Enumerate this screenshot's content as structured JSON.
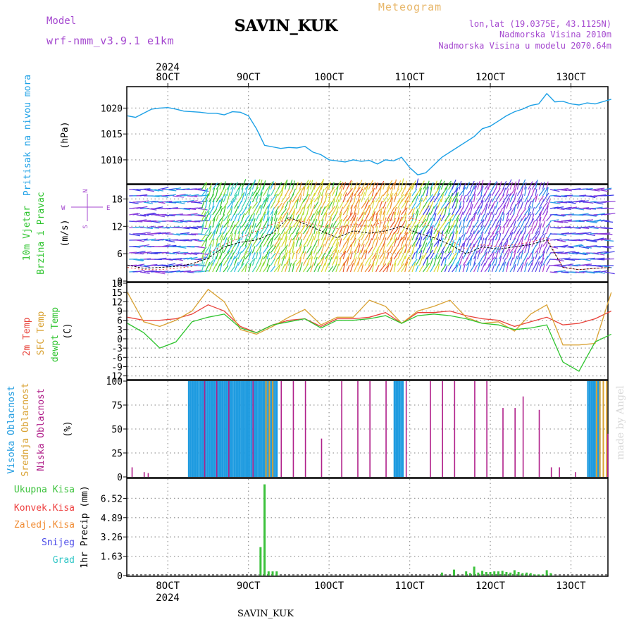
{
  "header": {
    "app_title": "Meteogram",
    "station": "SAVIN_KUK",
    "model_label": "Model",
    "model_name": "wrf-nmm_v3.9.1 e1km",
    "coords": "lon,lat (19.0375E, 43.1125N)",
    "elevation": "Nadmorska Visina 2010m",
    "model_elevation": "Nadmorska Visina u modelu 2070.64m",
    "watermark": "made by Angel",
    "footer_station": "SAVIN_KUK"
  },
  "colors": {
    "pressure": "#1ca0e6",
    "temp2m": "#e8423a",
    "sfc_temp": "#d9a233",
    "dewpt": "#2ec42e",
    "cloud_high": "#1e9be0",
    "cloud_mid": "#d9a233",
    "cloud_low": "#b0208a",
    "precip_total": "#3cc23c",
    "precip_conv": "#ee4040",
    "precip_frz": "#f08a30",
    "snow": "#4a4ae8",
    "grad": "#30c6c6",
    "title_purple": "#a447cf",
    "title_orange": "#e8b76a"
  },
  "chart_data": [
    {
      "id": "pressure",
      "type": "line",
      "year_label": "2024",
      "x_ticks": [
        "8OCT",
        "9OCT",
        "10OCT",
        "11OCT",
        "12OCT",
        "13OCT"
      ],
      "ylabel_name": "Pritisak na nivou mora",
      "ylabel_unit": "(hPa)",
      "ylim": [
        1005.5,
        1024
      ],
      "y_ticks": [
        "1010",
        "1015",
        "1020"
      ],
      "x": [
        7.5,
        7.6,
        7.7,
        7.8,
        7.9,
        8.0,
        8.1,
        8.2,
        8.3,
        8.4,
        8.5,
        8.6,
        8.7,
        8.8,
        8.9,
        9.0,
        9.1,
        9.2,
        9.3,
        9.4,
        9.5,
        9.6,
        9.7,
        9.8,
        9.9,
        10.0,
        10.1,
        10.2,
        10.3,
        10.4,
        10.5,
        10.6,
        10.7,
        10.8,
        10.9,
        11.0,
        11.1,
        11.2,
        11.3,
        11.4,
        11.5,
        11.6,
        11.7,
        11.8,
        11.9,
        12.0,
        12.1,
        12.2,
        12.3,
        12.4,
        12.5,
        12.6,
        12.7,
        12.8,
        12.9,
        13.0,
        13.1,
        13.2,
        13.3,
        13.5
      ],
      "y": [
        1018.5,
        1018.2,
        1019.0,
        1019.8,
        1020.0,
        1020.1,
        1019.8,
        1019.4,
        1019.3,
        1019.2,
        1019.0,
        1019.0,
        1018.7,
        1019.3,
        1019.2,
        1018.5,
        1016.0,
        1012.8,
        1012.5,
        1012.2,
        1012.4,
        1012.3,
        1012.6,
        1011.5,
        1011.0,
        1010.0,
        1009.8,
        1009.6,
        1010.0,
        1009.7,
        1009.9,
        1009.2,
        1010.0,
        1009.8,
        1010.5,
        1008.5,
        1007.1,
        1007.5,
        1009.0,
        1010.5,
        1011.5,
        1012.5,
        1013.5,
        1014.5,
        1016.0,
        1016.5,
        1017.5,
        1018.5,
        1019.3,
        1019.8,
        1020.5,
        1020.8,
        1022.8,
        1021.2,
        1021.3,
        1020.8,
        1020.6,
        1021.0,
        1020.8,
        1021.7
      ],
      "grid": true
    },
    {
      "id": "wind",
      "type": "line",
      "ylabel_name": "10m Vjetar",
      "ylabel_name2": "Brzina i Pravac",
      "ylabel_unit": "(m/s)",
      "compass": {
        "n": "N",
        "e": "E",
        "w": "W",
        "s": "S"
      },
      "ylim": [
        0,
        21
      ],
      "y_ticks": [
        "0",
        "6",
        "12",
        "18"
      ],
      "x": [
        7.5,
        7.7,
        7.9,
        8.1,
        8.3,
        8.5,
        8.7,
        8.9,
        9.1,
        9.3,
        9.5,
        9.7,
        9.9,
        10.1,
        10.3,
        10.5,
        10.7,
        10.9,
        11.1,
        11.3,
        11.5,
        11.7,
        11.9,
        12.1,
        12.3,
        12.5,
        12.7,
        12.9,
        13.1,
        13.3,
        13.5
      ],
      "speed": [
        3.5,
        2.8,
        3.0,
        3.2,
        3.8,
        5.0,
        7.5,
        8.5,
        9.0,
        10.5,
        14.0,
        12.5,
        11.0,
        9.5,
        11.0,
        10.5,
        11.0,
        12.0,
        10.5,
        9.5,
        8.0,
        6.0,
        7.5,
        7.0,
        7.5,
        8.0,
        9.0,
        3.0,
        2.5,
        2.8,
        3.0
      ],
      "gust": [
        3.0,
        2.5,
        2.5,
        2.8,
        3.2,
        6.0,
        8.0,
        9.5,
        11.0,
        12.5,
        13.5,
        13.0,
        12.0,
        11.5,
        12.5,
        12.0,
        13.0,
        14.0,
        13.5,
        11.5,
        9.0,
        7.0,
        8.0,
        7.5,
        8.0,
        8.5,
        9.5,
        3.0,
        2.5,
        2.8,
        3.0
      ],
      "grid": true
    },
    {
      "id": "temperature",
      "type": "line",
      "ylabel_names": [
        "2m Temp",
        "SFC Temp",
        "dewpt Temp"
      ],
      "ylabel_unit": "(C)",
      "ylim": [
        -13,
        18
      ],
      "y_ticks": [
        "-12",
        "-9",
        "-6",
        "-3",
        "0",
        "3",
        "6",
        "9",
        "12",
        "15",
        "18"
      ],
      "x": [
        7.5,
        7.7,
        7.9,
        8.1,
        8.3,
        8.5,
        8.7,
        8.9,
        9.1,
        9.3,
        9.5,
        9.7,
        9.9,
        10.1,
        10.3,
        10.5,
        10.7,
        10.9,
        11.1,
        11.3,
        11.5,
        11.7,
        11.9,
        12.1,
        12.3,
        12.5,
        12.7,
        12.9,
        13.1,
        13.3,
        13.5
      ],
      "series": [
        {
          "name": "2m Temp",
          "values": [
            7.0,
            6.0,
            6.0,
            6.5,
            8.0,
            11.0,
            9.0,
            4.0,
            2.0,
            4.5,
            6.0,
            6.5,
            4.0,
            6.5,
            6.5,
            7.0,
            8.5,
            5.0,
            8.5,
            8.5,
            9.0,
            7.5,
            6.5,
            6.0,
            4.0,
            5.5,
            7.0,
            4.5,
            5.0,
            6.5,
            9.0
          ]
        },
        {
          "name": "SFC Temp",
          "values": [
            15.0,
            5.5,
            4.0,
            6.0,
            9.0,
            16.0,
            12.0,
            3.0,
            1.5,
            4.0,
            7.0,
            9.5,
            4.5,
            7.0,
            7.0,
            12.5,
            10.5,
            5.0,
            9.0,
            10.5,
            12.5,
            7.0,
            5.0,
            5.5,
            2.5,
            8.0,
            11.0,
            -2.0,
            -2.0,
            -1.5,
            15.0
          ]
        },
        {
          "name": "dewpt Temp",
          "values": [
            5.0,
            2.0,
            -3.0,
            -1.0,
            5.5,
            7.0,
            8.0,
            3.5,
            2.0,
            4.5,
            5.5,
            6.5,
            3.5,
            6.0,
            6.0,
            6.5,
            7.5,
            5.0,
            7.5,
            8.0,
            7.5,
            6.5,
            5.0,
            4.5,
            3.0,
            3.5,
            4.5,
            -7.5,
            -10.5,
            -1.0,
            1.5
          ]
        }
      ],
      "grid": true
    },
    {
      "id": "clouds",
      "type": "bar",
      "ylabel_names": [
        "Visoka Oblacnost",
        "Srednja Oblacnost",
        "Niska Oblacnost"
      ],
      "ylabel_unit": "(%)",
      "ylim": [
        0,
        100
      ],
      "y_ticks": [
        "0",
        "25",
        "50",
        "75",
        "100"
      ],
      "high_ranges": [
        [
          8.25,
          9.35
        ],
        [
          10.8,
          10.92
        ],
        [
          13.2,
          13.35
        ]
      ],
      "mid_ranges": [
        [
          9.2,
          9.3
        ],
        [
          13.3,
          13.45
        ]
      ],
      "low_x": [
        7.55,
        7.7,
        7.75,
        8.45,
        8.6,
        8.75,
        9.05,
        9.4,
        9.55,
        9.7,
        9.9,
        10.15,
        10.35,
        10.5,
        10.7,
        10.95,
        11.25,
        11.4,
        11.55,
        11.8,
        11.95,
        12.15,
        12.3,
        12.4,
        12.6,
        12.75,
        12.85,
        13.05,
        13.45
      ],
      "low_values": [
        10,
        5,
        4,
        100,
        100,
        100,
        100,
        100,
        100,
        100,
        40,
        100,
        100,
        100,
        100,
        100,
        100,
        100,
        100,
        100,
        100,
        72,
        72,
        84,
        70,
        10,
        10,
        5,
        45
      ],
      "grid": true
    },
    {
      "id": "precip",
      "type": "bar",
      "legend": [
        "Ukupna Kisa",
        "Konvek.Kisa",
        "Zaledj.Kisa",
        "Snijeg",
        "Grad"
      ],
      "ylabel": "1hr Precip (mm)",
      "ylim": [
        0,
        8.15
      ],
      "y_ticks": [
        "0",
        "1.63",
        "3.26",
        "4.89",
        "6.52"
      ],
      "x_ticks": [
        "8OCT",
        "9OCT",
        "10OCT",
        "11OCT",
        "12OCT",
        "13OCT"
      ],
      "year_label": "2024",
      "x": [
        9.15,
        9.2,
        9.25,
        9.3,
        9.35,
        11.4,
        11.55,
        11.7,
        11.75,
        11.8,
        11.85,
        11.9,
        11.95,
        12.0,
        12.05,
        12.1,
        12.15,
        12.2,
        12.25,
        12.3,
        12.35,
        12.4,
        12.45,
        12.5,
        12.55,
        12.6,
        12.65,
        12.7,
        12.75
      ],
      "values": [
        2.4,
        7.7,
        0.35,
        0.35,
        0.35,
        0.25,
        0.5,
        0.35,
        0.2,
        0.75,
        0.25,
        0.4,
        0.3,
        0.3,
        0.35,
        0.35,
        0.4,
        0.3,
        0.25,
        0.45,
        0.3,
        0.2,
        0.25,
        0.2,
        0.1,
        0.1,
        0.1,
        0.45,
        0.2
      ],
      "grid": true
    }
  ]
}
